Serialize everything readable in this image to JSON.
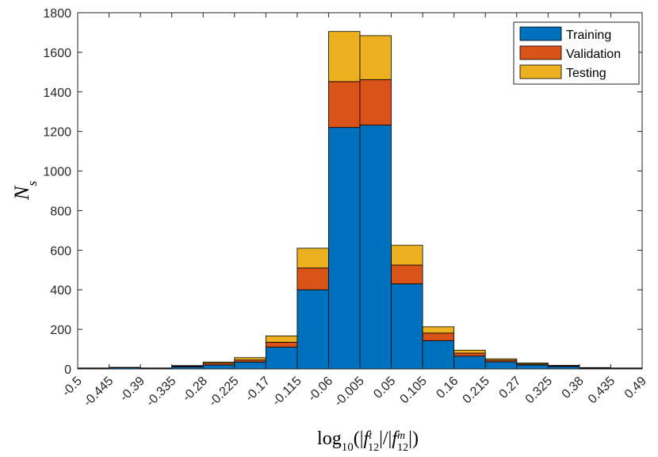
{
  "chart_data": {
    "type": "bar",
    "stacked": true,
    "title": "",
    "xlabel_html": "log<tspan baseline-shift='sub' font-size='15'>10</tspan>(|<tspan font-style='italic'>f</tspan><tspan baseline-shift='super' font-size='14' font-style='italic'>t</tspan><tspan dx='-5' baseline-shift='sub' font-size='14'>12</tspan>|/|<tspan font-style='italic'>f</tspan><tspan baseline-shift='super' font-size='14' font-style='italic'>m</tspan><tspan dx='-10' baseline-shift='sub' font-size='14'>12</tspan>|)",
    "xlabel": "log10(|f12t|/|f12m|)",
    "ylabel": "N_s",
    "ylabel_main": "N",
    "ylabel_sub": "s",
    "ylim": [
      0,
      1800
    ],
    "yticks": [
      0,
      200,
      400,
      600,
      800,
      1000,
      1200,
      1400,
      1600,
      1800
    ],
    "x_edges": [
      "-0.5",
      "-0.445",
      "-0.39",
      "-0.335",
      "-0.28",
      "-0.225",
      "-0.17",
      "-0.115",
      "-0.06",
      "-0.005",
      "0.05",
      "0.105",
      "0.16",
      "0.215",
      "0.27",
      "0.325",
      "0.38",
      "0.435",
      "0.49"
    ],
    "grid": false,
    "legend_position": "top-right",
    "series": [
      {
        "name": "Training",
        "color": "#0072BD",
        "values": [
          3,
          6,
          3,
          10,
          20,
          35,
          110,
          400,
          1220,
          1232,
          430,
          143,
          65,
          36,
          20,
          12,
          3,
          3
        ]
      },
      {
        "name": "Validation",
        "color": "#D95319",
        "values": [
          1,
          1,
          1,
          4,
          9,
          10,
          25,
          110,
          232,
          230,
          95,
          38,
          15,
          8,
          5,
          4,
          2,
          1
        ]
      },
      {
        "name": "Testing",
        "color": "#EDB120",
        "values": [
          1,
          1,
          1,
          3,
          6,
          12,
          32,
          100,
          253,
          222,
          100,
          32,
          15,
          7,
          5,
          2,
          2,
          1
        ]
      }
    ]
  }
}
